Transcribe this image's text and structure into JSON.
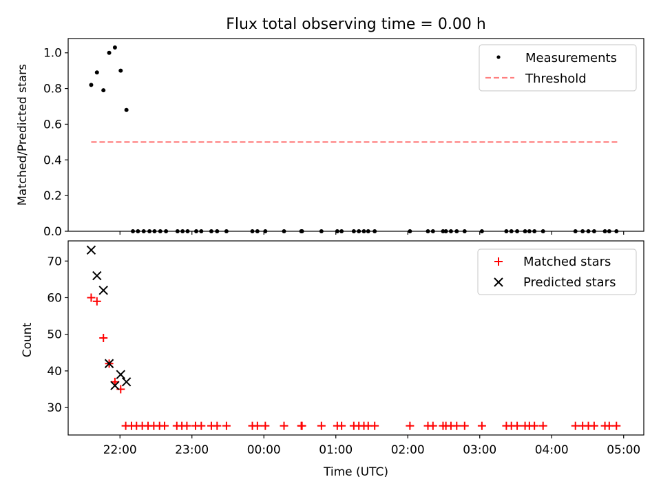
{
  "chart_data": [
    {
      "type": "scatter",
      "title": "Flux total observing time = 0.00 h",
      "xlabel": "",
      "ylabel": "Matched/Predicted stars",
      "xlim_hours": [
        21.28,
        29.28
      ],
      "ylim": [
        0,
        1.08
      ],
      "yticks": [
        "0.0",
        "0.2",
        "0.4",
        "0.6",
        "0.8",
        "1.0"
      ],
      "legend_position": "top-right",
      "series": [
        {
          "name": "Measurements",
          "style": "dot",
          "color": "#000000",
          "points": [
            [
              21.6,
              0.82
            ],
            [
              21.68,
              0.89
            ],
            [
              21.77,
              0.79
            ],
            [
              21.85,
              1.0
            ],
            [
              21.93,
              1.03
            ],
            [
              22.01,
              0.9
            ],
            [
              22.09,
              0.68
            ],
            [
              22.18,
              0
            ],
            [
              22.25,
              0
            ],
            [
              22.33,
              0
            ],
            [
              22.41,
              0
            ],
            [
              22.48,
              0
            ],
            [
              22.56,
              0
            ],
            [
              22.64,
              0
            ],
            [
              22.8,
              0
            ],
            [
              22.87,
              0
            ],
            [
              22.94,
              0
            ],
            [
              23.06,
              0
            ],
            [
              23.13,
              0
            ],
            [
              23.27,
              0
            ],
            [
              23.35,
              0
            ],
            [
              23.48,
              0
            ],
            [
              23.84,
              0
            ],
            [
              23.91,
              0
            ],
            [
              24.02,
              0
            ],
            [
              24.28,
              0
            ],
            [
              24.52,
              0
            ],
            [
              24.53,
              0
            ],
            [
              24.8,
              0
            ],
            [
              25.02,
              0
            ],
            [
              25.08,
              0
            ],
            [
              25.25,
              0
            ],
            [
              25.32,
              0
            ],
            [
              25.39,
              0
            ],
            [
              25.45,
              0
            ],
            [
              25.54,
              0
            ],
            [
              26.03,
              0
            ],
            [
              26.28,
              0
            ],
            [
              26.35,
              0
            ],
            [
              26.49,
              0
            ],
            [
              26.53,
              0
            ],
            [
              26.6,
              0
            ],
            [
              26.68,
              0
            ],
            [
              26.79,
              0
            ],
            [
              27.03,
              0
            ],
            [
              27.37,
              0
            ],
            [
              27.44,
              0
            ],
            [
              27.52,
              0
            ],
            [
              27.63,
              0
            ],
            [
              27.69,
              0
            ],
            [
              27.76,
              0
            ],
            [
              27.88,
              0
            ],
            [
              28.33,
              0
            ],
            [
              28.43,
              0
            ],
            [
              28.51,
              0
            ],
            [
              28.59,
              0
            ],
            [
              28.74,
              0
            ],
            [
              28.8,
              0
            ],
            [
              28.9,
              0
            ]
          ]
        },
        {
          "name": "Threshold",
          "style": "dashed",
          "color": "#ff7f7f",
          "points": [
            [
              21.6,
              0.5
            ],
            [
              28.94,
              0.5
            ]
          ]
        }
      ]
    },
    {
      "type": "scatter",
      "title": "",
      "xlabel": "Time (UTC)",
      "ylabel": "Count",
      "xlim_hours": [
        21.28,
        29.28
      ],
      "ylim": [
        22.5,
        75.5
      ],
      "yticks": [
        "30",
        "40",
        "50",
        "60",
        "70"
      ],
      "xticks": [
        {
          "h": 22,
          "label": "22:00"
        },
        {
          "h": 23,
          "label": "23:00"
        },
        {
          "h": 24,
          "label": "00:00"
        },
        {
          "h": 25,
          "label": "01:00"
        },
        {
          "h": 26,
          "label": "02:00"
        },
        {
          "h": 27,
          "label": "03:00"
        },
        {
          "h": 28,
          "label": "04:00"
        },
        {
          "h": 29,
          "label": "05:00"
        }
      ],
      "legend_position": "top-right",
      "series": [
        {
          "name": "Matched stars",
          "style": "plus",
          "color": "#ff0000",
          "points": [
            [
              21.6,
              60
            ],
            [
              21.68,
              59
            ],
            [
              21.77,
              49
            ],
            [
              21.85,
              42
            ],
            [
              21.93,
              37
            ],
            [
              22.01,
              35
            ],
            [
              22.08,
              25
            ],
            [
              22.16,
              25
            ],
            [
              22.23,
              25
            ],
            [
              22.31,
              25
            ],
            [
              22.39,
              25
            ],
            [
              22.47,
              25
            ],
            [
              22.55,
              25
            ],
            [
              22.62,
              25
            ],
            [
              22.79,
              25
            ],
            [
              22.86,
              25
            ],
            [
              22.93,
              25
            ],
            [
              23.05,
              25
            ],
            [
              23.13,
              25
            ],
            [
              23.27,
              25
            ],
            [
              23.35,
              25
            ],
            [
              23.48,
              25
            ],
            [
              23.84,
              25
            ],
            [
              23.91,
              25
            ],
            [
              24.02,
              25
            ],
            [
              24.28,
              25
            ],
            [
              24.52,
              25
            ],
            [
              24.53,
              25
            ],
            [
              24.8,
              25
            ],
            [
              25.02,
              25
            ],
            [
              25.08,
              25
            ],
            [
              25.25,
              25
            ],
            [
              25.32,
              25
            ],
            [
              25.39,
              25
            ],
            [
              25.45,
              25
            ],
            [
              25.54,
              25
            ],
            [
              26.03,
              25
            ],
            [
              26.28,
              25
            ],
            [
              26.35,
              25
            ],
            [
              26.49,
              25
            ],
            [
              26.53,
              25
            ],
            [
              26.6,
              25
            ],
            [
              26.68,
              25
            ],
            [
              26.79,
              25
            ],
            [
              27.03,
              25
            ],
            [
              27.37,
              25
            ],
            [
              27.44,
              25
            ],
            [
              27.52,
              25
            ],
            [
              27.63,
              25
            ],
            [
              27.69,
              25
            ],
            [
              27.76,
              25
            ],
            [
              27.88,
              25
            ],
            [
              28.33,
              25
            ],
            [
              28.43,
              25
            ],
            [
              28.51,
              25
            ],
            [
              28.59,
              25
            ],
            [
              28.74,
              25
            ],
            [
              28.8,
              25
            ],
            [
              28.9,
              25
            ]
          ]
        },
        {
          "name": "Predicted stars",
          "style": "x",
          "color": "#000000",
          "points": [
            [
              21.6,
              73
            ],
            [
              21.68,
              66
            ],
            [
              21.77,
              62
            ],
            [
              21.85,
              42
            ],
            [
              21.93,
              36
            ],
            [
              22.01,
              39
            ],
            [
              22.09,
              37
            ]
          ]
        }
      ]
    }
  ]
}
